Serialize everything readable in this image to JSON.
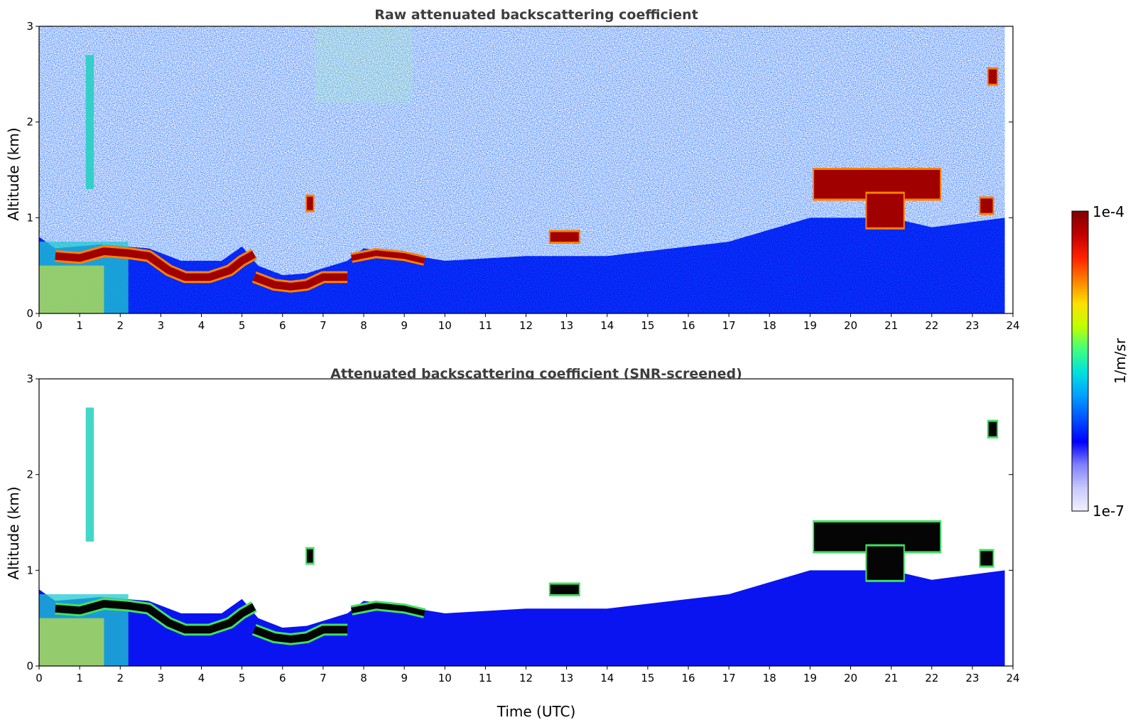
{
  "chart_data": [
    {
      "type": "heatmap",
      "title": "Raw attenuated backscattering coefficient",
      "xlabel": "",
      "ylabel": "Altitude (km)",
      "xlim": [
        0,
        24
      ],
      "ylim": [
        0,
        3
      ],
      "x_ticks": [
        "0",
        "1",
        "2",
        "3",
        "4",
        "5",
        "6",
        "7",
        "8",
        "9",
        "10",
        "11",
        "12",
        "13",
        "14",
        "15",
        "16",
        "17",
        "18",
        "19",
        "20",
        "21",
        "22",
        "23",
        "24"
      ],
      "y_ticks": [
        "0",
        "1",
        "2",
        "3"
      ],
      "data_end_time": 23.8,
      "log_scale": true,
      "layer_top_km": [
        [
          0,
          0.8
        ],
        [
          0.4,
          0.68
        ],
        [
          1.5,
          0.72
        ],
        [
          2.7,
          0.68
        ],
        [
          3.5,
          0.55
        ],
        [
          4.5,
          0.55
        ],
        [
          5.0,
          0.7
        ],
        [
          5.4,
          0.5
        ],
        [
          6.0,
          0.4
        ],
        [
          6.6,
          0.42
        ],
        [
          7.6,
          0.55
        ],
        [
          8.0,
          0.68
        ],
        [
          9.0,
          0.62
        ],
        [
          10.0,
          0.55
        ],
        [
          12.0,
          0.6
        ],
        [
          14.0,
          0.6
        ],
        [
          17.0,
          0.75
        ],
        [
          19.0,
          1.0
        ],
        [
          21.0,
          1.0
        ],
        [
          22.0,
          0.9
        ],
        [
          23.8,
          1.0
        ]
      ],
      "features": [
        {
          "kind": "boundary-layer-top",
          "points": [
            [
              0.4,
              0.6
            ],
            [
              1.0,
              0.58
            ],
            [
              1.6,
              0.65
            ],
            [
              2.2,
              0.63
            ],
            [
              2.7,
              0.6
            ],
            [
              3.2,
              0.45
            ],
            [
              3.6,
              0.38
            ],
            [
              4.2,
              0.38
            ],
            [
              4.7,
              0.45
            ],
            [
              5.0,
              0.55
            ],
            [
              5.3,
              0.62
            ]
          ],
          "thickness": 0.08
        },
        {
          "kind": "boundary-layer-top",
          "points": [
            [
              5.3,
              0.38
            ],
            [
              5.8,
              0.3
            ],
            [
              6.2,
              0.28
            ],
            [
              6.6,
              0.3
            ],
            [
              7.0,
              0.38
            ],
            [
              7.6,
              0.38
            ]
          ],
          "thickness": 0.08
        },
        {
          "kind": "boundary-layer-top",
          "points": [
            [
              7.7,
              0.58
            ],
            [
              8.3,
              0.63
            ],
            [
              9.0,
              0.6
            ],
            [
              9.5,
              0.55
            ]
          ],
          "thickness": 0.06
        },
        {
          "kind": "aerosol-plume",
          "time": [
            1.15,
            1.35
          ],
          "altitude": [
            1.3,
            2.7
          ]
        },
        {
          "kind": "cloud",
          "time": [
            6.6,
            6.75
          ],
          "altitude": [
            1.08,
            1.22
          ]
        },
        {
          "kind": "cloud",
          "time": [
            12.6,
            13.3
          ],
          "altitude": [
            0.75,
            0.85
          ]
        },
        {
          "kind": "cloud",
          "time": [
            19.1,
            22.2
          ],
          "altitude": [
            1.2,
            1.5
          ]
        },
        {
          "kind": "cloud",
          "time": [
            20.4,
            21.3
          ],
          "altitude": [
            0.9,
            1.25
          ]
        },
        {
          "kind": "cloud",
          "time": [
            23.2,
            23.5
          ],
          "altitude": [
            1.05,
            1.2
          ]
        },
        {
          "kind": "cloud",
          "time": [
            23.4,
            23.6
          ],
          "altitude": [
            2.4,
            2.55
          ]
        }
      ]
    },
    {
      "type": "heatmap",
      "title": "Attenuated backscattering coefficient (SNR-screened)",
      "xlabel": "Time (UTC)",
      "ylabel": "Altitude (km)",
      "xlim": [
        0,
        24
      ],
      "ylim": [
        0,
        3
      ],
      "x_ticks": [
        "0",
        "1",
        "2",
        "3",
        "4",
        "5",
        "6",
        "7",
        "8",
        "9",
        "10",
        "11",
        "12",
        "13",
        "14",
        "15",
        "16",
        "17",
        "18",
        "19",
        "20",
        "21",
        "22",
        "23",
        "24"
      ],
      "y_ticks": [
        "0",
        "1",
        "2",
        "3"
      ],
      "data_end_time": 23.8,
      "log_scale": true,
      "screened": true
    }
  ],
  "colorbar": {
    "label": "1/m/sr",
    "max_label": "1e-4",
    "min_label": "1e-7",
    "scale": "log",
    "colors": [
      "#f0f0ff",
      "#c8c8ff",
      "#8080ff",
      "#0000ff",
      "#0050ff",
      "#00a0ff",
      "#00e0e0",
      "#40ff80",
      "#c0ff00",
      "#ffe000",
      "#ff8000",
      "#ff2000",
      "#c00000",
      "#800000"
    ]
  }
}
